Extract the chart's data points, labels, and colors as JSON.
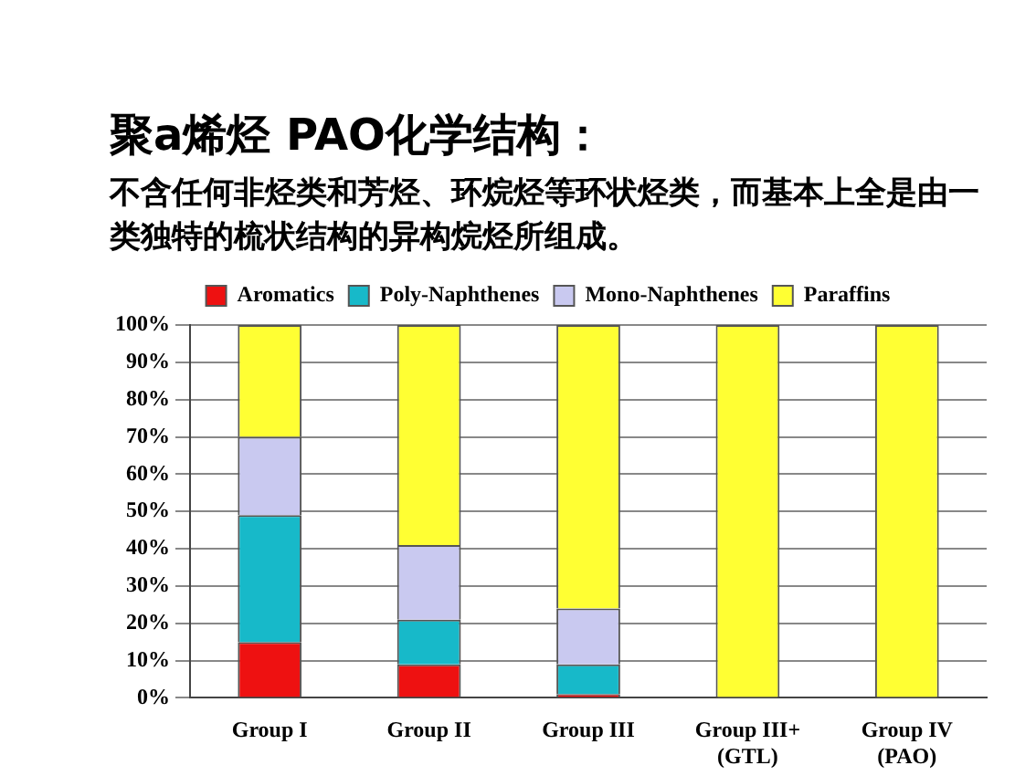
{
  "chart_data": {
    "type": "bar",
    "stacked": true,
    "title": "聚a烯烃 PAO化学结构：",
    "subtitle": "不含任何非烃类和芳烃、环烷烃等环状烃类，而基本上全是由一类独特的梳状结构的异构烷烃所组成。",
    "categories": [
      "Group I",
      "Group II",
      "Group III",
      "Group III+\n(GTL)",
      "Group IV\n(PAO)"
    ],
    "series": [
      {
        "name": "Aromatics",
        "color": "#ee1111",
        "values": [
          15,
          9,
          1,
          0,
          0
        ]
      },
      {
        "name": "Poly-Naphthenes",
        "color": "#17b9c9",
        "values": [
          34,
          12,
          8,
          0,
          0
        ]
      },
      {
        "name": "Mono-Naphthenes",
        "color": "#c9c9f0",
        "values": [
          21,
          20,
          15,
          0,
          0
        ]
      },
      {
        "name": "Paraffins",
        "color": "#ffff33",
        "values": [
          30,
          59,
          76,
          100,
          100
        ]
      }
    ],
    "ylim": [
      0,
      100
    ],
    "yticks": [
      {
        "value": 0,
        "label": "0%"
      },
      {
        "value": 10,
        "label": "10%"
      },
      {
        "value": 20,
        "label": "20%"
      },
      {
        "value": 30,
        "label": "30%"
      },
      {
        "value": 40,
        "label": "40%"
      },
      {
        "value": 50,
        "label": "50%"
      },
      {
        "value": 60,
        "label": "60%"
      },
      {
        "value": 70,
        "label": "70%"
      },
      {
        "value": 80,
        "label": "80%"
      },
      {
        "value": 90,
        "label": "90%"
      },
      {
        "value": 100,
        "label": "100%"
      }
    ],
    "grid": "y",
    "legend": "top"
  }
}
